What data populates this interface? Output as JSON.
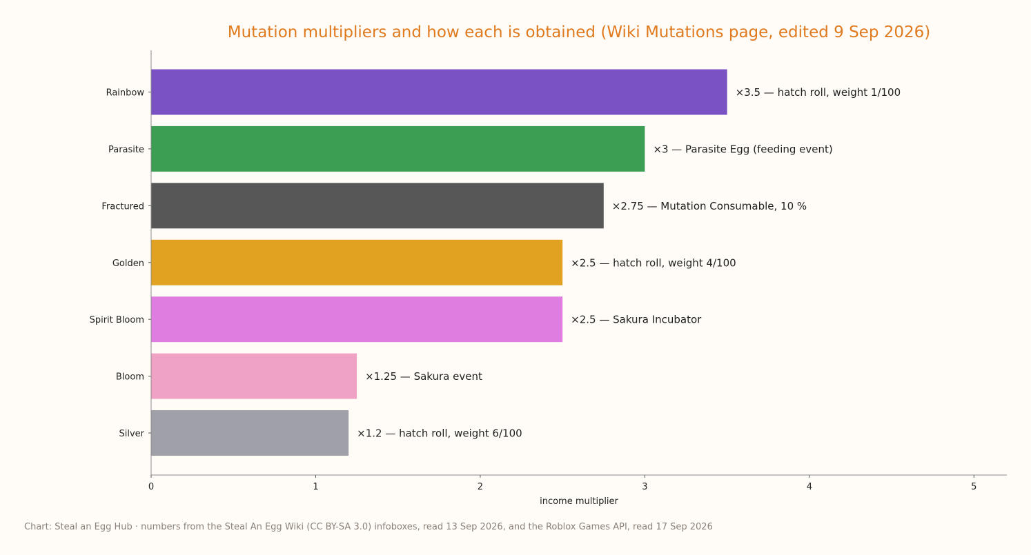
{
  "chart_data": {
    "type": "bar",
    "orientation": "horizontal",
    "title": "Mutation multipliers and how each is obtained (Wiki Mutations page, edited 9 Sep 2026)",
    "xlabel": "income multiplier",
    "ylabel": "",
    "xlim": [
      0,
      5.2
    ],
    "xticks": [
      "0",
      "1",
      "2",
      "3",
      "4",
      "5"
    ],
    "grid": false,
    "categories": [
      "Rainbow",
      "Parasite",
      "Fractured",
      "Golden",
      "Spirit Bloom",
      "Bloom",
      "Silver"
    ],
    "values": [
      3.5,
      3,
      2.75,
      2.5,
      2.5,
      1.25,
      1.2
    ],
    "data_labels": [
      "×3.5 — hatch roll, weight 1/100",
      "×3 — Parasite Egg (feeding event)",
      "×2.75 — Mutation Consumable, 10 %",
      "×2.5 — hatch roll, weight 4/100",
      "×2.5 — Sakura Incubator",
      "×1.25 — Sakura event",
      "×1.2 — hatch roll, weight 6/100"
    ],
    "colors": [
      "#7b52c4",
      "#3c9e52",
      "#575757",
      "#e0a220",
      "#df7de0",
      "#efa2c3",
      "#a0a0a8"
    ],
    "caption": "Chart: Steal an Egg Hub · numbers from the Steal An Egg Wiki (CC BY-SA 3.0) infoboxes, read 13 Sep 2026, and the Roblox Games API, read 17 Sep 2026"
  },
  "colors": {
    "title": "#e07a1f",
    "background": "#fffcf7",
    "caption": "#8a8178"
  }
}
